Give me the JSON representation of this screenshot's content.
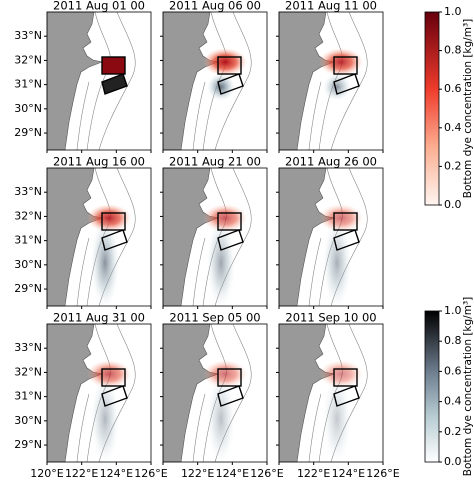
{
  "maps": {
    "panels": [
      "2011 Aug 01 00",
      "2011 Aug 06 00",
      "2011 Aug 11 00",
      "2011 Aug 16 00",
      "2011 Aug 21 00",
      "2011 Aug 26 00",
      "2011 Aug 31 00",
      "2011 Sep 05 00",
      "2011 Sep 10 00"
    ],
    "latlim": [
      28.3,
      34
    ],
    "lonlim": [
      120,
      126
    ],
    "lat_ticks": [
      {
        "value": 33,
        "label": "33°N"
      },
      {
        "value": 32,
        "label": "32°N"
      },
      {
        "value": 31,
        "label": "31°N"
      },
      {
        "value": 30,
        "label": "30°N"
      },
      {
        "value": 29,
        "label": "29°N"
      }
    ],
    "lon_ticks": [
      {
        "value": 120,
        "label": "120°E"
      },
      {
        "value": 122,
        "label": "122°E"
      },
      {
        "value": 124,
        "label": "124°E"
      },
      {
        "value": 126,
        "label": "126°E"
      }
    ],
    "colorbars": [
      {
        "label": "Bottom dye concentration [kg/m³]",
        "lim": [
          0,
          1
        ],
        "ticks": [
          {
            "value": 0,
            "label": "0.0"
          },
          0.2,
          0.4,
          0.6,
          0.8,
          {
            "value": 1,
            "label": "1.0"
          }
        ]
      },
      {
        "label": "Bottom dye concentration [kg/m³]",
        "lim": [
          0,
          1
        ],
        "ticks": [
          {
            "value": 0,
            "label": "0.0"
          },
          0.2,
          0.4,
          0.6,
          0.8,
          {
            "value": 1,
            "label": "1.0"
          }
        ]
      }
    ]
  }
}
